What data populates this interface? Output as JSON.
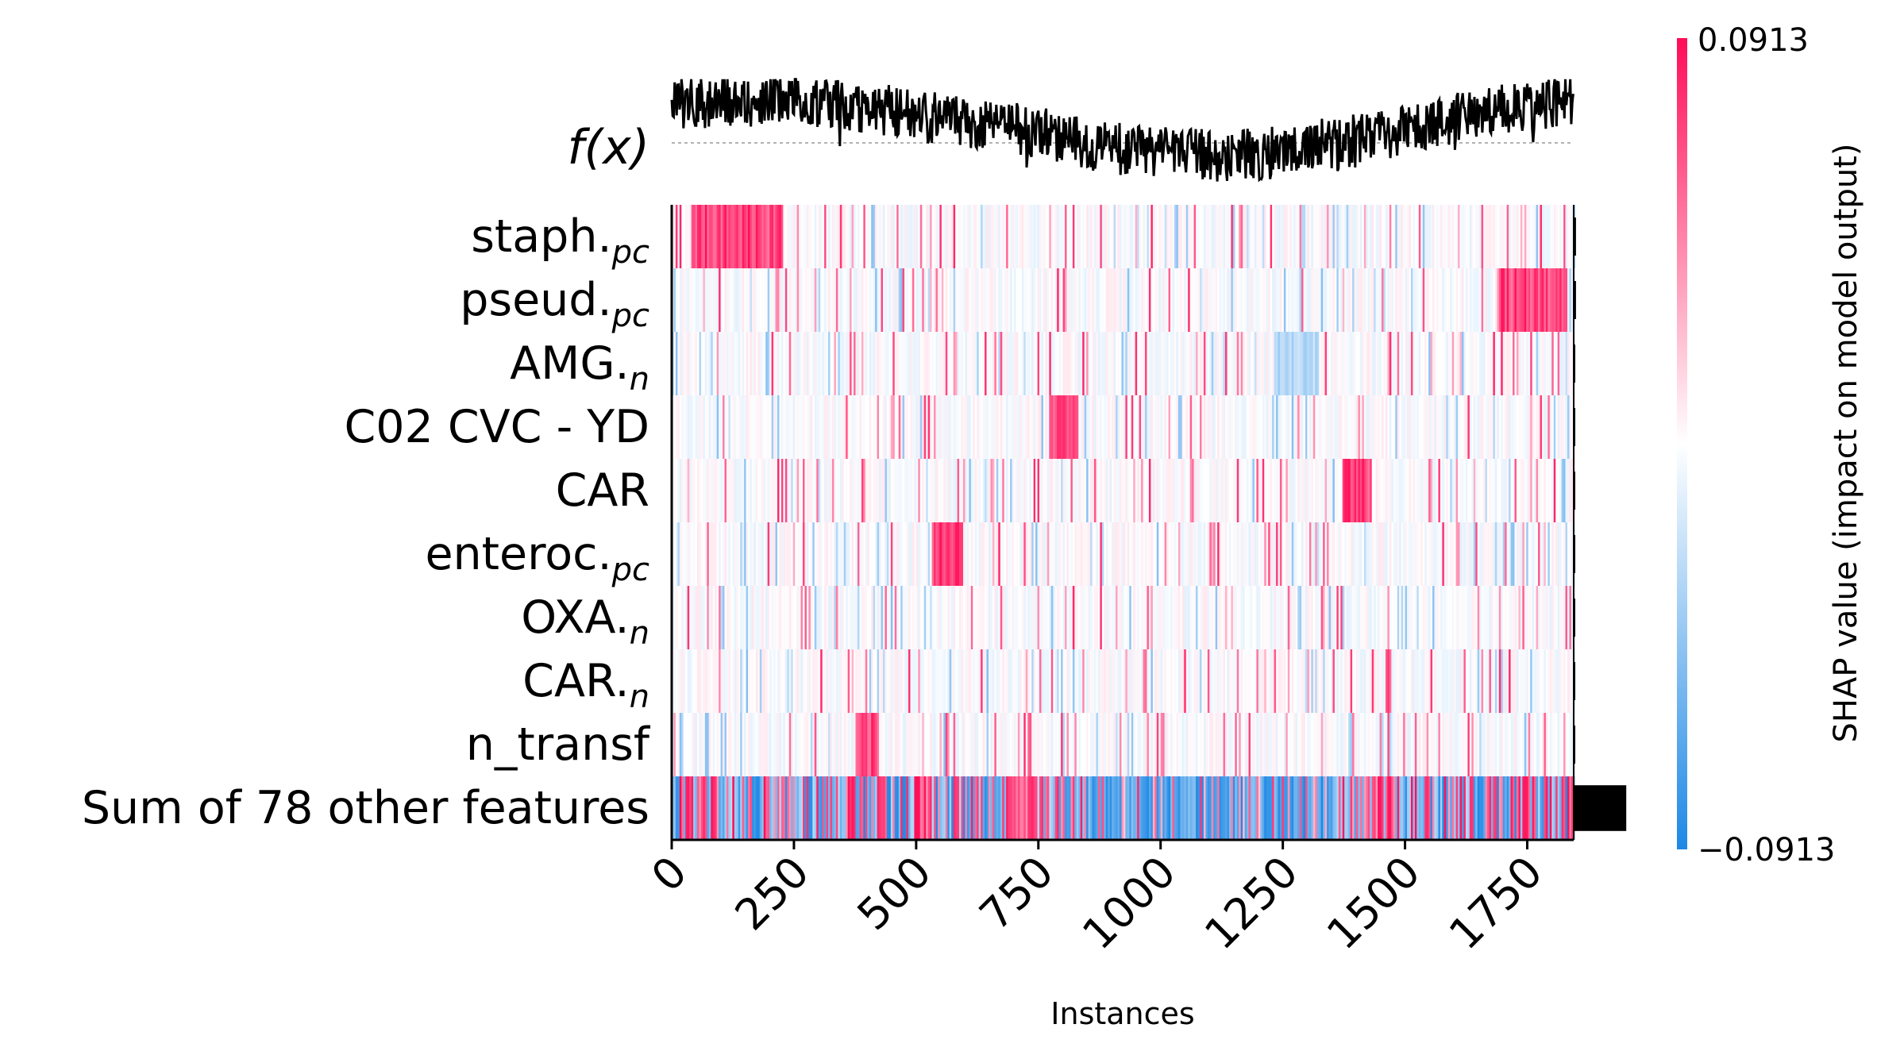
{
  "chart_data": {
    "type": "heatmap",
    "title": "",
    "xlabel": "Instances",
    "fx_label": "f(x)",
    "x_range": [
      0,
      1845
    ],
    "x_ticks": [
      "0",
      "250",
      "500",
      "750",
      "1000",
      "1250",
      "1500",
      "1750"
    ],
    "x_tick_values": [
      0,
      250,
      500,
      750,
      1000,
      1250,
      1500,
      1750
    ],
    "features": [
      {
        "base": "staph.",
        "sub": "pc"
      },
      {
        "base": "pseud.",
        "sub": "pc"
      },
      {
        "base": "AMG.",
        "sub": "n"
      },
      {
        "base": "C02 CVC - YD",
        "sub": ""
      },
      {
        "base": "CAR",
        "sub": ""
      },
      {
        "base": "enteroc.",
        "sub": "pc"
      },
      {
        "base": "OXA.",
        "sub": "n"
      },
      {
        "base": "CAR.",
        "sub": "n"
      },
      {
        "base": "n_transf",
        "sub": ""
      },
      {
        "base": "Sum of 78 other features",
        "sub": ""
      }
    ],
    "feature_importance": [
      0.004,
      0.004,
      0.002,
      0.001,
      0.001,
      0.001,
      0.001,
      0.001,
      0.001,
      0.092
    ],
    "feature_importance_max": 0.1,
    "high_shap_segments": [
      {
        "feature": 0,
        "from": 40,
        "to": 225
      },
      {
        "feature": 1,
        "from": 1690,
        "to": 1830
      },
      {
        "feature": 4,
        "from": 1370,
        "to": 1430
      },
      {
        "feature": 5,
        "from": 530,
        "to": 595
      },
      {
        "feature": 8,
        "from": 375,
        "to": 420
      },
      {
        "feature": 3,
        "from": 770,
        "to": 830
      }
    ],
    "low_shap_segments": [
      {
        "feature": 2,
        "from": 1230,
        "to": 1320
      }
    ],
    "fx_profile": [
      {
        "x": 0,
        "y": 0.55
      },
      {
        "x": 250,
        "y": 0.6
      },
      {
        "x": 500,
        "y": 0.35
      },
      {
        "x": 700,
        "y": 0.2
      },
      {
        "x": 900,
        "y": -0.1
      },
      {
        "x": 1100,
        "y": -0.2
      },
      {
        "x": 1300,
        "y": -0.15
      },
      {
        "x": 1500,
        "y": 0.15
      },
      {
        "x": 1700,
        "y": 0.45
      },
      {
        "x": 1845,
        "y": 0.55
      }
    ],
    "colorbar": {
      "max_label": "0.0913",
      "min_label": "−0.0913",
      "min": -0.0913,
      "max": 0.0913,
      "title": "SHAP value (impact on model output)",
      "colors": [
        "#1e88e5",
        "#ffffff",
        "#ff0d57"
      ]
    }
  }
}
